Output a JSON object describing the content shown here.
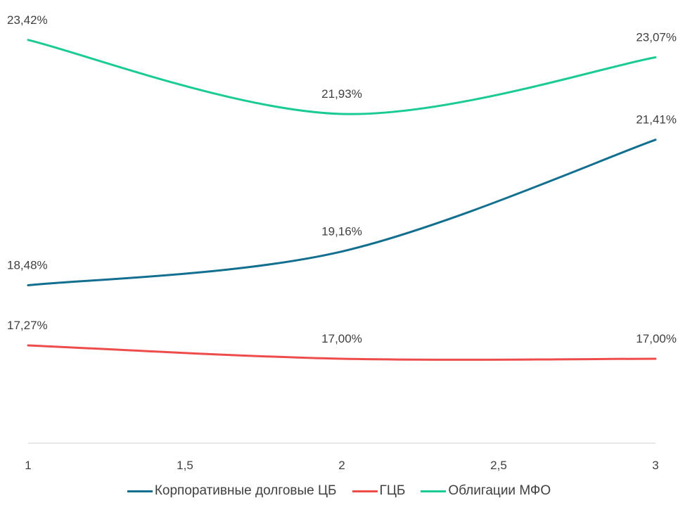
{
  "chart_data": {
    "type": "line",
    "x": [
      1,
      2,
      3
    ],
    "xticks": [
      "1",
      "1,5",
      "2",
      "2,5",
      "3"
    ],
    "xlim": [
      1,
      3
    ],
    "ylim": [
      15.3,
      23.8
    ],
    "grid": false,
    "legend_position": "bottom",
    "series": [
      {
        "name": "Корпоративные долговые ЦБ",
        "values": [
          18.48,
          19.16,
          21.41
        ],
        "labels": [
          "18,48%",
          "19,16%",
          "21,41%"
        ],
        "color": "#136F8F"
      },
      {
        "name": "ГЦБ",
        "values": [
          17.27,
          17.0,
          17.0
        ],
        "labels": [
          "17,27%",
          "17,00%",
          "17,00%"
        ],
        "color": "#EE4B4B"
      },
      {
        "name": "Облигации МФО",
        "values": [
          23.42,
          21.93,
          23.07
        ],
        "labels": [
          "23,42%",
          "21,93%",
          "23,07%"
        ],
        "color": "#1BCB93"
      }
    ]
  }
}
